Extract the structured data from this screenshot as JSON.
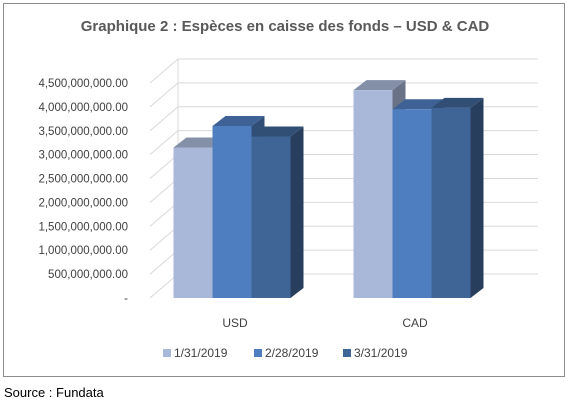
{
  "chart_data": {
    "type": "bar",
    "title": "Graphique 2 : Espèces en caisse des fonds – USD & CAD",
    "categories": [
      "USD",
      "CAD"
    ],
    "series": [
      {
        "name": "1/31/2019",
        "values": [
          3150000000,
          4350000000
        ],
        "color": "#a9b8d8"
      },
      {
        "name": "2/28/2019",
        "values": [
          3600000000,
          3950000000
        ],
        "color": "#4f7ec0"
      },
      {
        "name": "3/31/2019",
        "values": [
          3380000000,
          3980000000
        ],
        "color": "#3f6496"
      }
    ],
    "ylim": [
      0,
      4500000000
    ],
    "yticks": [
      0,
      500000000,
      1000000000,
      1500000000,
      2000000000,
      2500000000,
      3000000000,
      3500000000,
      4000000000,
      4500000000
    ],
    "ytick_labels": [
      "-",
      "500,000,000.00",
      "1,000,000,000.00",
      "1,500,000,000.00",
      "2,000,000,000.00",
      "2,500,000,000.00",
      "3,000,000,000.00",
      "3,500,000,000.00",
      "4,000,000,000.00",
      "4,500,000,000.00"
    ],
    "xlabel": "",
    "ylabel": "",
    "grid": true,
    "legend_position": "bottom"
  },
  "source_note": "Source : Fundata"
}
